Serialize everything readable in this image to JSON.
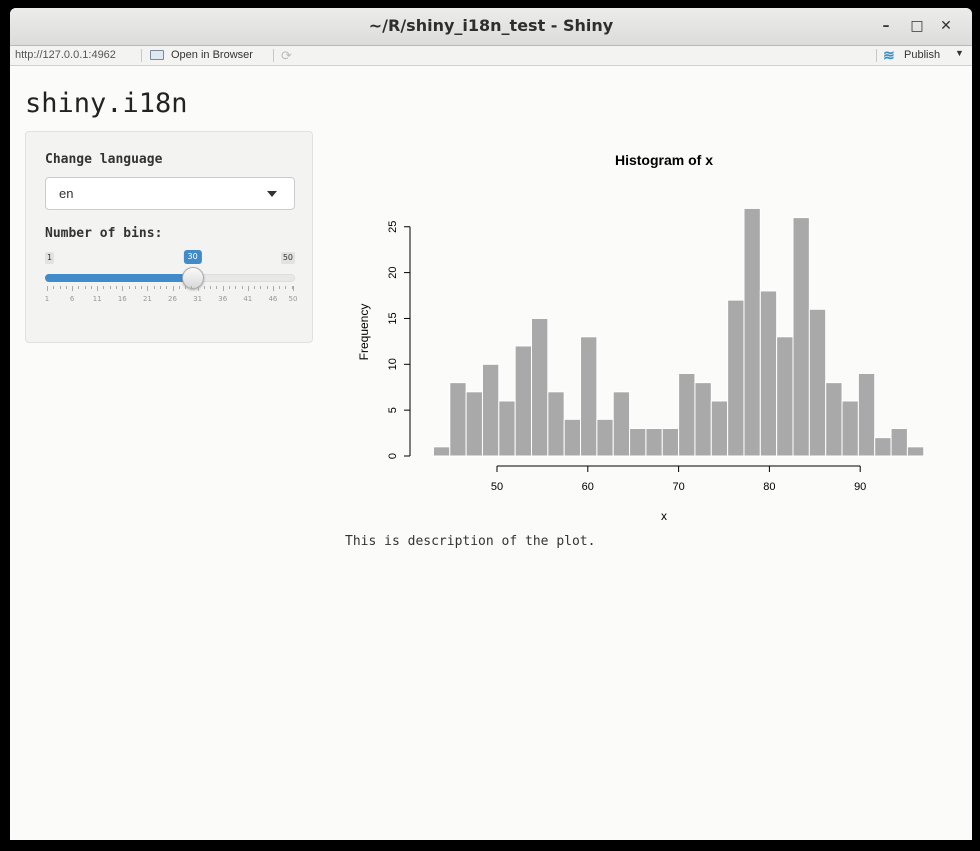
{
  "window": {
    "title": "~/R/shiny_i18n_test - Shiny",
    "controls": [
      "minimize",
      "maximize",
      "close"
    ]
  },
  "toolbar": {
    "url": "http://127.0.0.1:4962",
    "open_in_browser": "Open in Browser",
    "publish": "Publish",
    "publish_icon": "publish-icon",
    "refresh_icon": "refresh-icon"
  },
  "app": {
    "title": "shiny.i18n",
    "language_label": "Change language",
    "language_value": "en",
    "bins_label": "Number of bins:",
    "slider": {
      "min": 1,
      "max": 50,
      "value": 30,
      "min_label": "1",
      "max_label": "50",
      "value_label": "30",
      "ticks": [
        "1",
        "6",
        "11",
        "16",
        "21",
        "26",
        "31",
        "36",
        "41",
        "46",
        "50"
      ],
      "accent_color": "#428bca"
    },
    "description": "This is description of the plot."
  },
  "chart_data": {
    "type": "bar",
    "title": "Histogram of x",
    "xlabel": "x",
    "ylabel": "Frequency",
    "bin_width": 1.8,
    "bin_start": 43.0,
    "values": [
      1,
      8,
      7,
      10,
      6,
      12,
      15,
      7,
      4,
      13,
      4,
      7,
      3,
      3,
      3,
      9,
      8,
      6,
      17,
      27,
      18,
      13,
      26,
      16,
      8,
      6,
      9,
      2,
      3,
      1
    ],
    "xticks": [
      "50",
      "60",
      "70",
      "80",
      "90"
    ],
    "yticks": [
      "0",
      "5",
      "10",
      "15",
      "20",
      "25"
    ],
    "xlim": [
      43,
      97
    ],
    "ylim": [
      0,
      27
    ],
    "bar_color": "#a9a9a9",
    "grid": false
  }
}
